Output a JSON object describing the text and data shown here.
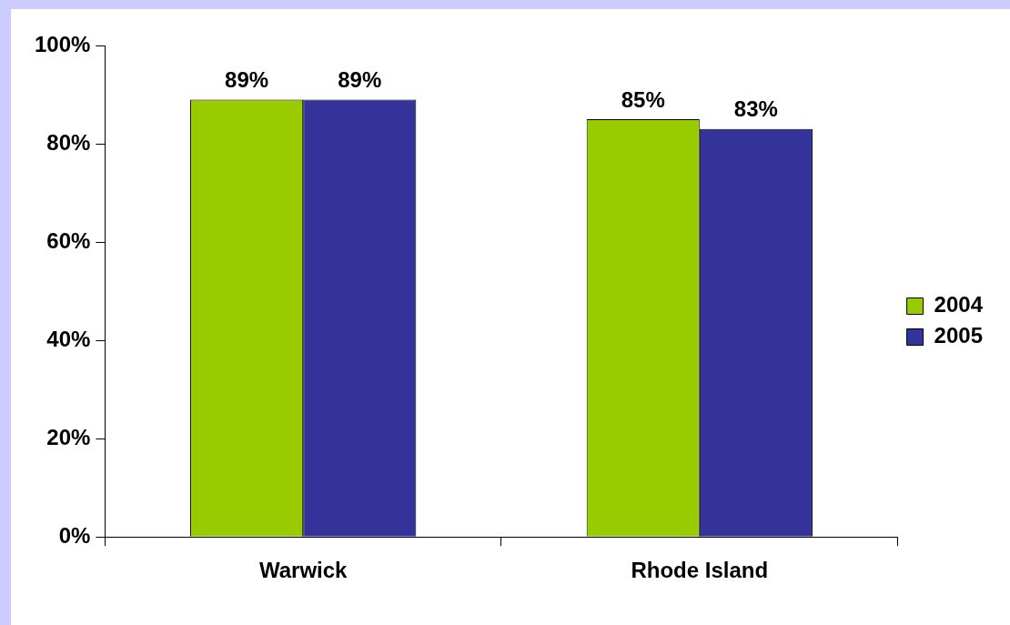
{
  "chart_data": {
    "type": "bar",
    "categories": [
      "Warwick",
      "Rhode Island"
    ],
    "series": [
      {
        "name": "2004",
        "color": "#99cc00",
        "values": [
          89,
          85
        ],
        "value_labels": [
          "89%",
          "85%"
        ]
      },
      {
        "name": "2005",
        "color": "#333399",
        "values": [
          89,
          83
        ],
        "value_labels": [
          "89%",
          "83%"
        ]
      }
    ],
    "ylim": [
      0,
      100
    ],
    "yticks": [
      {
        "value": 0,
        "label": "0%"
      },
      {
        "value": 20,
        "label": "20%"
      },
      {
        "value": 40,
        "label": "40%"
      },
      {
        "value": 60,
        "label": "60%"
      },
      {
        "value": 80,
        "label": "80%"
      },
      {
        "value": 100,
        "label": "100%"
      }
    ],
    "grid": false,
    "legend": "right"
  }
}
